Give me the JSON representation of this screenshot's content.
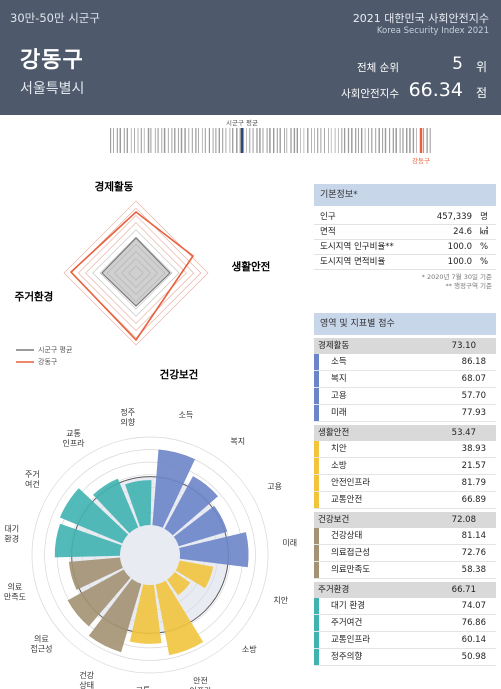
{
  "header": {
    "population_group": "30만-50만 시군구",
    "district_name": "강동구",
    "city": "서울특별시",
    "index_title": "2021 대한민국 사회안전지수",
    "index_title_en": "Korea Security Index 2021",
    "rank_label": "전체 순위",
    "rank_value": "5",
    "rank_unit": "위",
    "score_label": "사회안전지수",
    "score_value": "66.34",
    "score_unit": "점"
  },
  "strip": {
    "avg_label": "시군구 평균",
    "self_label": "강동구"
  },
  "radar": {
    "axes": [
      "경제활동",
      "생활안전",
      "건강보건",
      "주거환경"
    ],
    "legend": [
      {
        "label": "시군구 평균",
        "color": "#7a7a7a"
      },
      {
        "label": "강동구",
        "color": "#e8603c"
      }
    ]
  },
  "basic_info": {
    "title": "기본정보*",
    "rows": [
      {
        "label": "인구",
        "value": "457,339",
        "unit": "명"
      },
      {
        "label": "면적",
        "value": "24.6",
        "unit": "㎢"
      },
      {
        "label": "도시지역 인구비율**",
        "value": "100.0",
        "unit": "%"
      },
      {
        "label": "도시지역 면적비율",
        "value": "100.0",
        "unit": "%"
      }
    ],
    "notes": [
      "* 2020년 7월 30일 기준",
      "** 행정구역 기준"
    ]
  },
  "scores": {
    "title": "영역 및 지표별 점수",
    "categories": [
      {
        "name": "경제활동",
        "score": "73.10",
        "color": "#6b85c9",
        "items": [
          {
            "name": "소득",
            "score": "86.18"
          },
          {
            "name": "복지",
            "score": "68.07"
          },
          {
            "name": "고용",
            "score": "57.70"
          },
          {
            "name": "미래",
            "score": "77.93"
          }
        ]
      },
      {
        "name": "생활안전",
        "score": "53.47",
        "color": "#f2c43d",
        "items": [
          {
            "name": "치안",
            "score": "38.93"
          },
          {
            "name": "소방",
            "score": "21.57"
          },
          {
            "name": "안전인프라",
            "score": "81.79"
          },
          {
            "name": "교통안전",
            "score": "66.89"
          }
        ]
      },
      {
        "name": "건강보건",
        "score": "72.08",
        "color": "#a39273",
        "items": [
          {
            "name": "건강상태",
            "score": "81.14"
          },
          {
            "name": "의료접근성",
            "score": "72.76"
          },
          {
            "name": "의료만족도",
            "score": "58.38"
          }
        ]
      },
      {
        "name": "주거환경",
        "score": "66.71",
        "color": "#3fb3b0",
        "items": [
          {
            "name": "대기 환경",
            "score": "74.07"
          },
          {
            "name": "주거여건",
            "score": "76.86"
          },
          {
            "name": "교통인프라",
            "score": "60.14"
          },
          {
            "name": "정주의향",
            "score": "50.98"
          }
        ]
      }
    ]
  },
  "polar_labels": [
    "소득",
    "복지",
    "고용",
    "미래",
    "치안",
    "소방",
    "안전\n인프라",
    "교통\n안전",
    "건강\n상태",
    "의료\n접근성",
    "의료\n만족도",
    "대기\n환경",
    "주거\n여건",
    "교통\n인프라",
    "정주\n의향"
  ]
}
